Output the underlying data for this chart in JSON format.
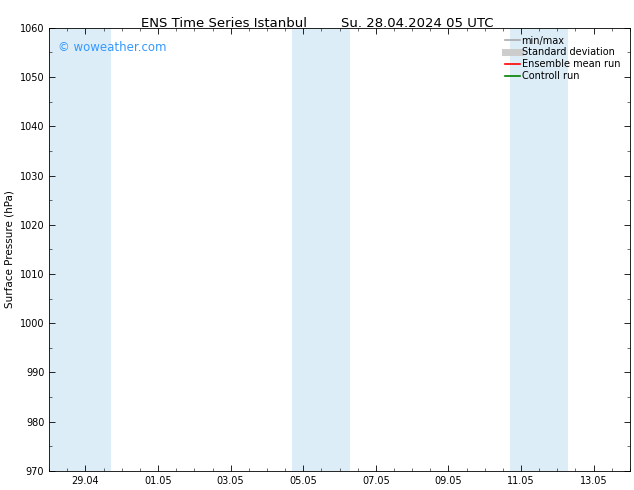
{
  "title_left": "ENS Time Series Istanbul",
  "title_right": "Su. 28.04.2024 05 UTC",
  "ylabel": "Surface Pressure (hPa)",
  "ylim": [
    970,
    1060
  ],
  "yticks": [
    970,
    980,
    990,
    1000,
    1010,
    1020,
    1030,
    1040,
    1050,
    1060
  ],
  "background_color": "#ffffff",
  "plot_bg_color": "#ffffff",
  "shaded_band_color": "#ddedf8",
  "watermark": "© woweather.com",
  "watermark_color": "#3399ff",
  "legend_items": [
    {
      "label": "min/max",
      "color": "#aaaaaa",
      "lw": 1.2,
      "style": "solid"
    },
    {
      "label": "Standard deviation",
      "color": "#cccccc",
      "lw": 5,
      "style": "solid"
    },
    {
      "label": "Ensemble mean run",
      "color": "#ff0000",
      "lw": 1.2,
      "style": "solid"
    },
    {
      "label": "Controll run",
      "color": "#008000",
      "lw": 1.2,
      "style": "solid"
    }
  ],
  "title_fontsize": 9.5,
  "axis_label_fontsize": 7.5,
  "tick_fontsize": 7,
  "legend_fontsize": 7,
  "watermark_fontsize": 8.5
}
